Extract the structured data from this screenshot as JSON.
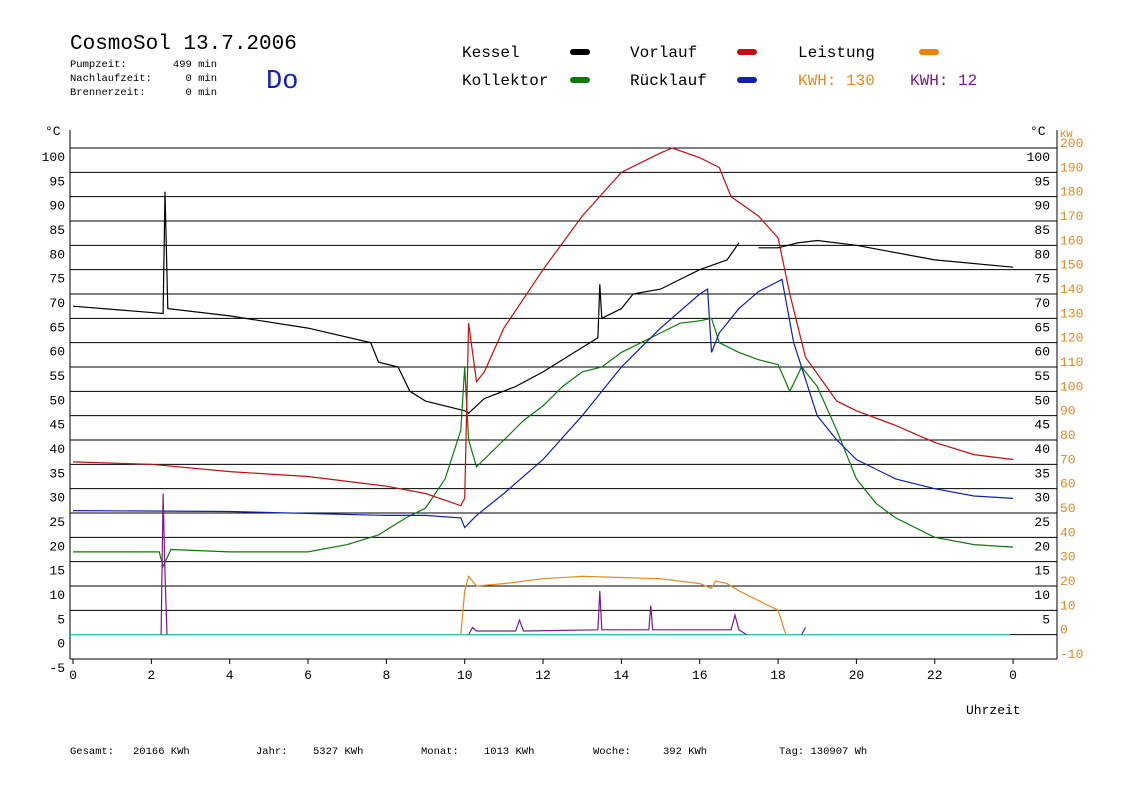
{
  "header": {
    "title": "CosmoSol 13.7.2006",
    "day": "Do",
    "stats": [
      {
        "label": "Pumpzeit:",
        "value": "499 min"
      },
      {
        "label": "Nachlaufzeit:",
        "value": "0 min"
      },
      {
        "label": "Brennerzeit:",
        "value": "0 min"
      }
    ],
    "kwh": [
      {
        "text": "KWH: 130",
        "color": "#e08a20"
      },
      {
        "text": "KWH: 12",
        "color": "#7a1a8a"
      }
    ]
  },
  "footer": [
    {
      "label": "Gesamt:",
      "value": "20166 KWh"
    },
    {
      "label": "Jahr:",
      "value": "5327 KWh"
    },
    {
      "label": "Monat:",
      "value": "1013 KWh"
    },
    {
      "label": "Woche:",
      "value": "392 KWh"
    },
    {
      "label": "Tag: 130907 Wh"
    }
  ],
  "chart_data": {
    "type": "line",
    "y_label": "°C",
    "y2_label_left": "°C",
    "y2_label": "KW",
    "x_label": "Uhrzeit",
    "xlim": [
      0,
      25.1
    ],
    "xticks": [
      0,
      2,
      4,
      6,
      8,
      10,
      12,
      14,
      16,
      18,
      20,
      22,
      {
        "value": 24,
        "label": "0"
      }
    ],
    "ylim": [
      -5,
      103.7
    ],
    "yticks": [
      -5,
      0,
      5,
      10,
      15,
      20,
      25,
      30,
      35,
      40,
      45,
      50,
      55,
      60,
      65,
      70,
      75,
      80,
      85,
      90,
      95,
      100
    ],
    "yticks_right": [
      5,
      10,
      15,
      20,
      25,
      30,
      35,
      40,
      45,
      50,
      55,
      60,
      65,
      70,
      75,
      80,
      85,
      90,
      95,
      100
    ],
    "y2lim": [
      -10,
      207.4
    ],
    "y2ticks": [
      -10,
      0,
      10,
      20,
      30,
      40,
      50,
      60,
      70,
      80,
      90,
      100,
      110,
      120,
      130,
      140,
      150,
      160,
      170,
      180,
      190,
      200
    ],
    "grid": true,
    "series": [
      {
        "name": "Kessel",
        "color": "#000000",
        "legend": true,
        "x": [
          0,
          2.3,
          2.35,
          2.42,
          4,
          6,
          7.6,
          7.8,
          8.3,
          8.6,
          9,
          9.5,
          10,
          10.1,
          10.5,
          11.3,
          12,
          13,
          13.4,
          13.45,
          13.5,
          14,
          14.3,
          15,
          15.5,
          16,
          16.7,
          17,
          17.2,
          17.5,
          18,
          18.5,
          19,
          20,
          22,
          24
        ],
        "values": [
          67.5,
          66,
          91,
          67,
          65.5,
          63,
          60,
          56,
          55,
          50,
          48,
          47,
          46,
          45.5,
          48.5,
          51,
          54,
          59,
          61,
          72,
          65,
          67,
          70,
          71,
          73,
          75,
          77,
          80.5,
          null,
          79.5,
          79.5,
          80.5,
          81,
          80,
          77,
          75.5
        ]
      },
      {
        "name": "Kollektor",
        "color": "#0a7a0a",
        "legend": true,
        "x": [
          0,
          2,
          2.2,
          2.3,
          2.5,
          4,
          6,
          7,
          7.8,
          8.5,
          9,
          9.5,
          9.9,
          10,
          10.1,
          10.3,
          11,
          11.5,
          12,
          12.5,
          13,
          13.5,
          14,
          14.5,
          15,
          15.5,
          16,
          16.3,
          16.5,
          17,
          17.5,
          18,
          18.3,
          18.6,
          19,
          19.5,
          20,
          20.5,
          21,
          22,
          23,
          24
        ],
        "values": [
          17,
          17,
          17,
          14,
          17.5,
          17,
          17,
          18.5,
          20.5,
          24,
          26,
          32,
          42,
          55,
          40,
          34.5,
          40,
          44,
          47,
          51,
          54,
          55,
          58,
          60,
          62,
          64,
          64.5,
          65,
          60,
          58,
          56.5,
          55.5,
          50,
          55,
          51,
          42,
          32,
          27,
          24,
          20,
          18.5,
          18
        ]
      },
      {
        "name": "Vorlauf",
        "color": "#c01010",
        "legend": true,
        "x": [
          0,
          2,
          4,
          6,
          8,
          9,
          9.9,
          10,
          10.1,
          10.3,
          10.5,
          11,
          12,
          13,
          14,
          15,
          15.3,
          16,
          16.5,
          16.8,
          17.5,
          18,
          18.3,
          18.7,
          19.5,
          20,
          21,
          22,
          23,
          24
        ],
        "values": [
          35.5,
          35,
          33.5,
          32.5,
          30.5,
          29,
          26.5,
          28,
          64,
          52,
          54,
          63,
          75,
          86,
          95,
          99,
          100,
          98,
          96,
          90,
          86,
          81.5,
          70,
          57,
          48,
          46,
          43,
          39.5,
          37,
          36
        ]
      },
      {
        "name": "Rücklauf",
        "color": "#1020b0",
        "legend": true,
        "x": [
          0,
          4,
          8,
          9,
          9.9,
          10,
          10.3,
          11,
          12,
          13,
          14,
          15,
          16,
          16.2,
          16.3,
          16.5,
          17,
          17.5,
          18.1,
          18.4,
          19,
          19.5,
          20,
          21,
          22,
          23,
          24
        ],
        "values": [
          25.5,
          25.3,
          24.5,
          24.5,
          24,
          22,
          24.5,
          29,
          36,
          45,
          55,
          63,
          70,
          71,
          58,
          62,
          67,
          70.5,
          73,
          60,
          45,
          40,
          36,
          32,
          30,
          28.5,
          28
        ]
      },
      {
        "name": "Leistung",
        "color": "#e08a20",
        "legend_color": "#f08000",
        "legend": true,
        "axis": "y2",
        "x": [
          9.9,
          10,
          10.1,
          10.3,
          11,
          12,
          13,
          14,
          15,
          16,
          16.3,
          16.4,
          16.7,
          17,
          17.5,
          18,
          18.2
        ],
        "values": [
          0,
          18,
          24,
          20,
          21,
          23,
          24,
          23.5,
          23,
          21,
          19,
          22,
          21,
          18,
          14,
          10,
          0
        ]
      },
      {
        "color": "#7a1a8a",
        "axis": "y2",
        "x": [
          2.25,
          2.3,
          2.35,
          2.4,
          2.5,
          10.1,
          10.2,
          10.3,
          11.3,
          11.4,
          11.5,
          13.4,
          13.45,
          13.5,
          14.7,
          14.75,
          14.8,
          16.8,
          16.9,
          17,
          17.2,
          18.5,
          18.6,
          18.7
        ],
        "values": [
          0,
          58,
          25,
          0,
          null,
          0,
          3,
          1.5,
          1.5,
          6,
          1.5,
          2,
          18,
          2,
          2,
          12,
          2,
          2,
          8,
          2,
          0,
          null,
          0,
          3
        ]
      }
    ]
  }
}
